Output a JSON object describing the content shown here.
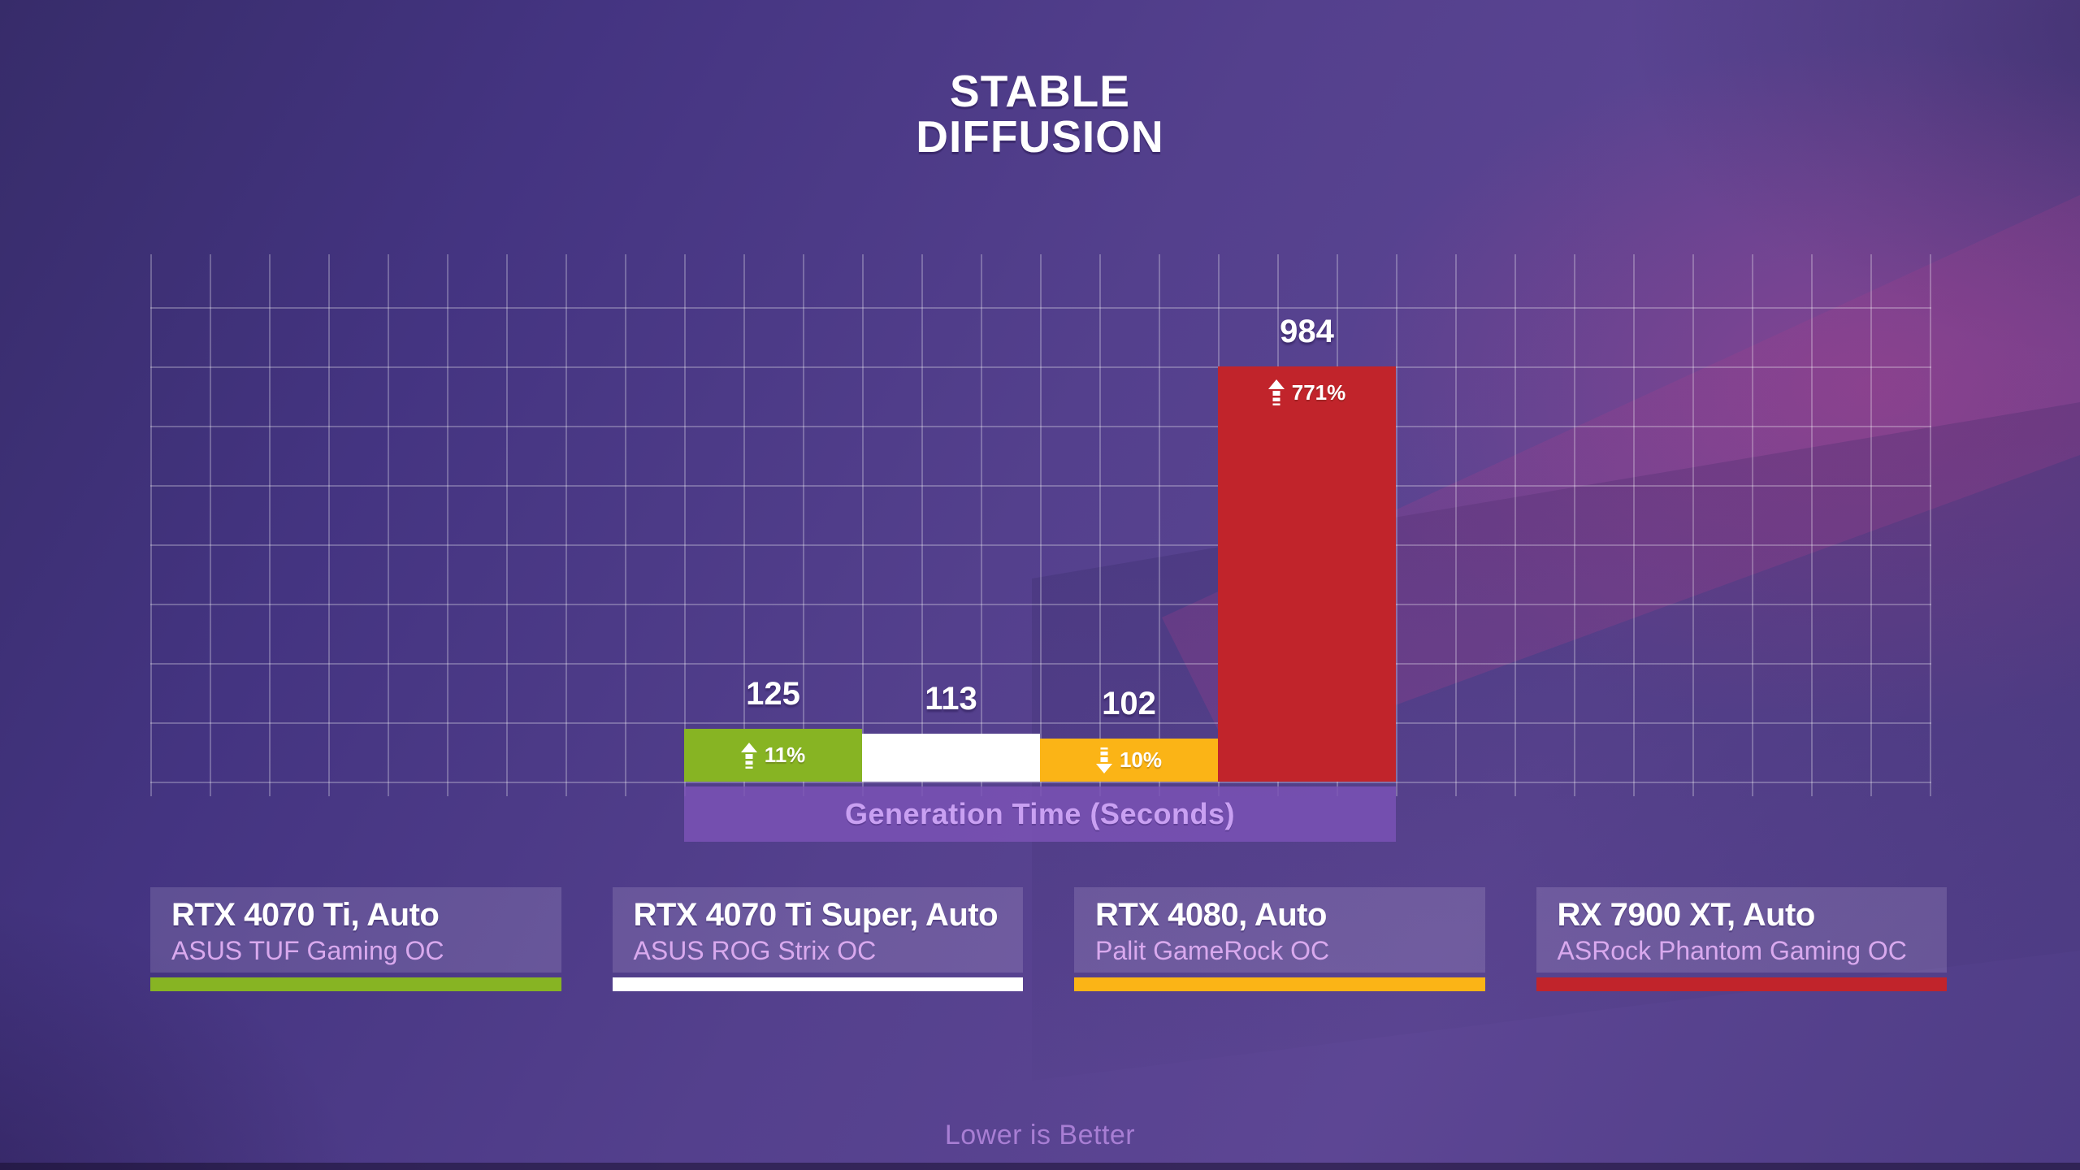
{
  "title": {
    "line1": "STABLE",
    "line2": "DIFFUSION"
  },
  "chart_data": {
    "type": "bar",
    "title": "STABLE DIFFUSION",
    "xlabel": "Generation Time (Seconds)",
    "footnote": "Lower is Better",
    "categories": [
      "RTX 4070 Ti, Auto",
      "RTX 4070 Ti Super, Auto",
      "RTX 4080, Auto",
      "RX 7900 XT, Auto"
    ],
    "values": [
      125,
      113,
      102,
      984
    ],
    "value_labels": [
      "125",
      "113",
      "102",
      "984"
    ],
    "deltas_vs_baseline": [
      {
        "direction": "up",
        "text": "11%"
      },
      null,
      {
        "direction": "down",
        "text": "10%"
      },
      {
        "direction": "up",
        "text": "771%"
      }
    ],
    "baseline_index": 1,
    "bar_colors": [
      "#87b423",
      "#ffffff",
      "#fbb416",
      "#c1242b"
    ],
    "grid": true,
    "gridlines": {
      "rows": 9,
      "cols": 30
    },
    "legend_position": "bottom",
    "lower_is_better": true
  },
  "cards": [
    {
      "gpu": "RTX 4070 Ti, Auto",
      "model": "ASUS TUF Gaming OC",
      "color": "#87b423"
    },
    {
      "gpu": "RTX 4070 Ti Super, Auto",
      "model": "ASUS ROG Strix OC",
      "color": "#ffffff"
    },
    {
      "gpu": "RTX 4080, Auto",
      "model": "Palit GameRock OC",
      "color": "#fbb416"
    },
    {
      "gpu": "RX 7900 XT, Auto",
      "model": "ASRock Phantom Gaming OC",
      "color": "#c1242b"
    }
  ],
  "footer": {
    "note": "Lower is Better"
  },
  "colors": {
    "green": "#87b423",
    "white": "#ffffff",
    "orange": "#fbb416",
    "red": "#c1242b",
    "band_bg": "#7a52b5",
    "band_text": "#c9a0f2",
    "card_subtitle": "#d9a9ee",
    "footnote_text": "#a87ed4",
    "grid_line": "rgba(255,255,255,0.26)"
  }
}
